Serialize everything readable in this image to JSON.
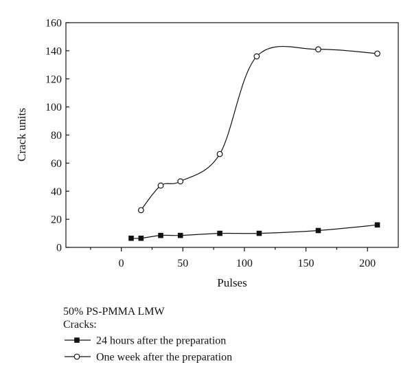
{
  "chart_data": {
    "type": "line",
    "xlabel": "Pulses",
    "ylabel": "Crack units",
    "xlim": [
      -45,
      225
    ],
    "ylim": [
      0,
      160
    ],
    "x_ticks": [
      0,
      50,
      100,
      150,
      200
    ],
    "y_ticks": [
      0,
      20,
      40,
      60,
      80,
      100,
      120,
      140,
      160
    ],
    "grid": false,
    "legend_placement": "bottom-left, below the plot",
    "legend_title": "50% PS-PMMA LMW",
    "legend_subtitle": "Cracks:",
    "series": [
      {
        "name": "24 hours after the preparation",
        "marker": "filled-square",
        "x": [
          8,
          16,
          32,
          48,
          80,
          112,
          160,
          208
        ],
        "y": [
          6.5,
          6.5,
          8.5,
          8.5,
          10,
          10,
          12,
          16
        ]
      },
      {
        "name": "One week after the preparation",
        "marker": "open-circle",
        "x": [
          16,
          32,
          48,
          80,
          110,
          160,
          208
        ],
        "y": [
          26.5,
          44,
          47,
          66.5,
          136,
          141,
          138
        ]
      }
    ]
  }
}
